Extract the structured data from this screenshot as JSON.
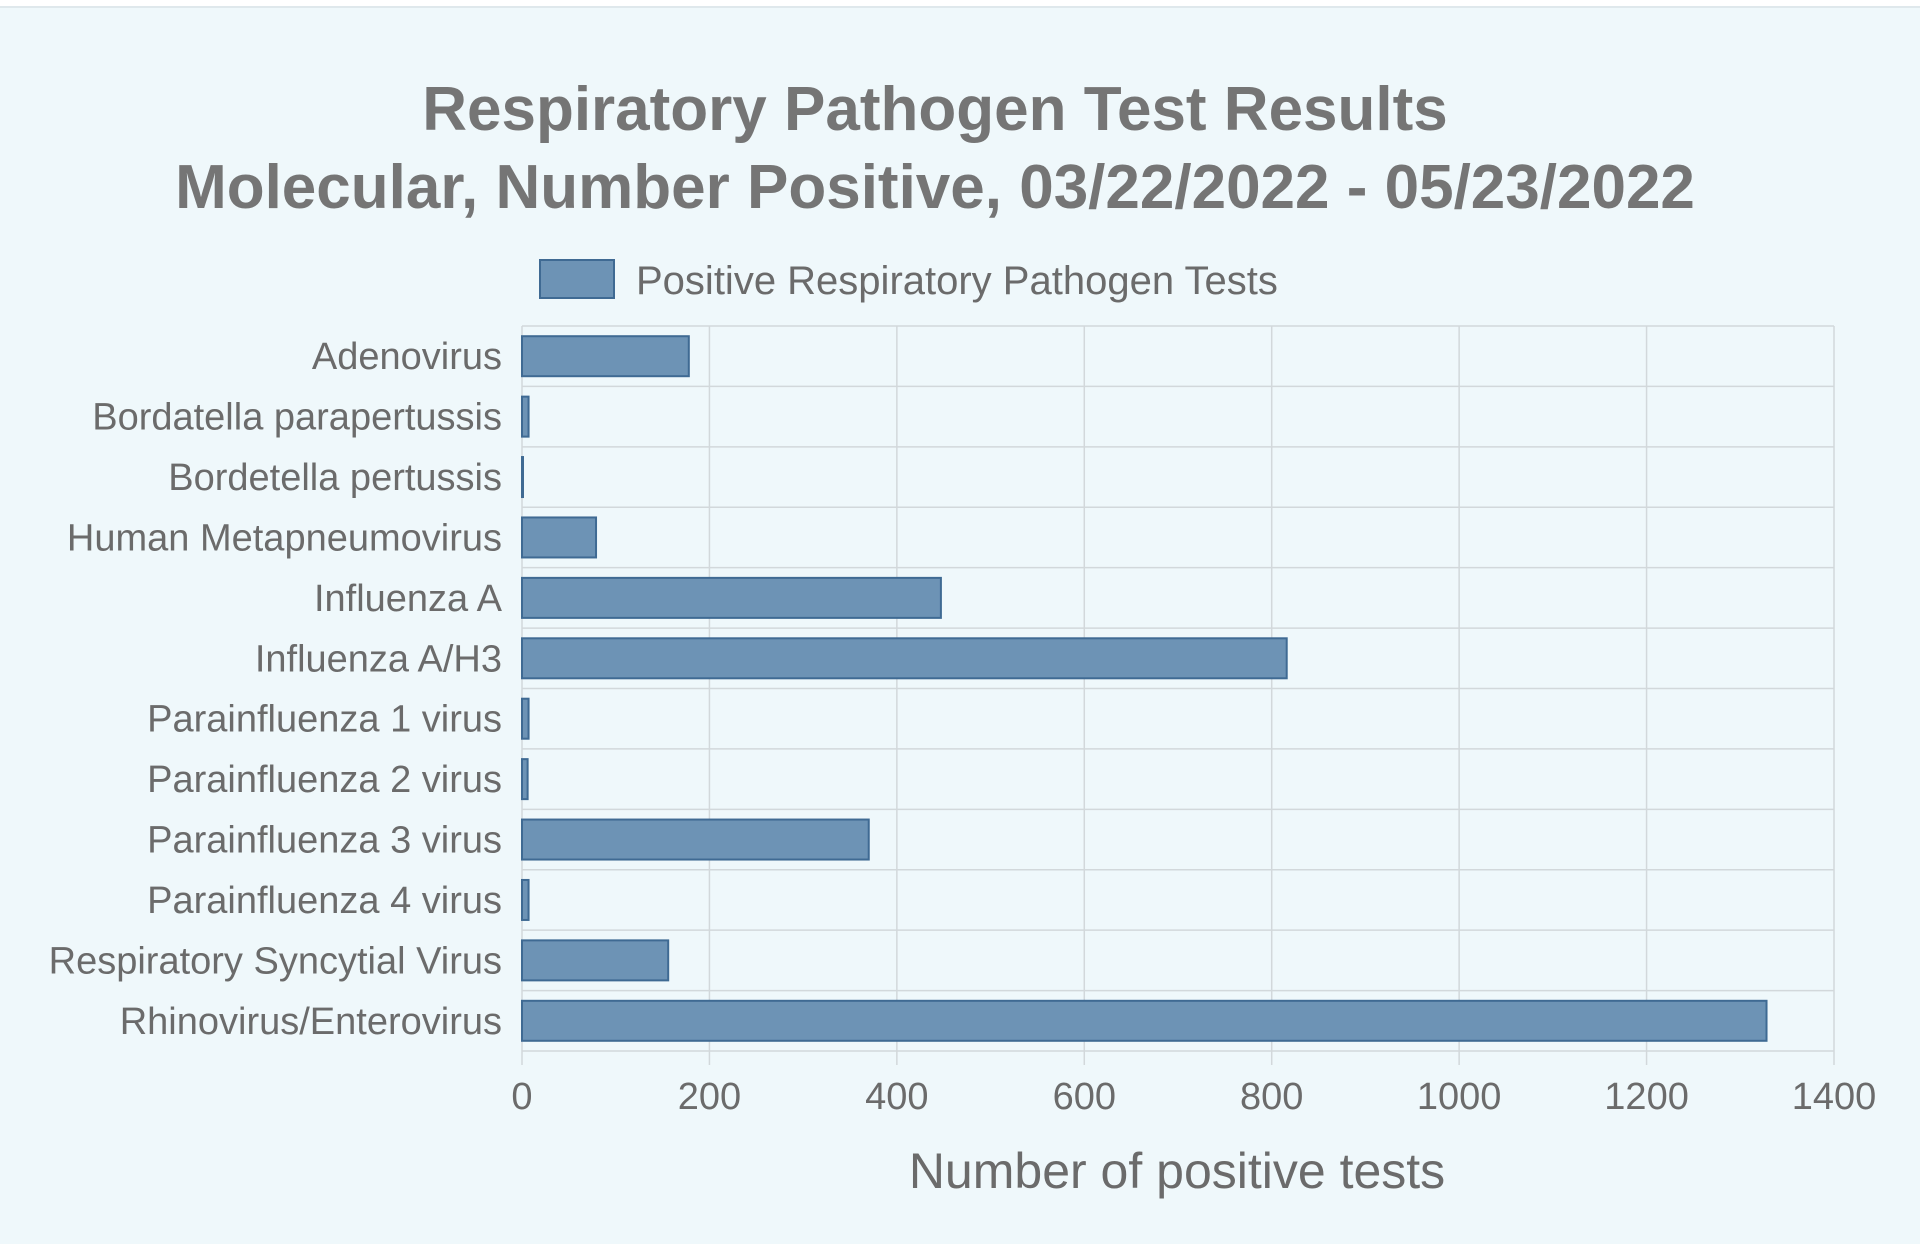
{
  "chart_data": {
    "type": "bar",
    "orientation": "horizontal",
    "title": [
      "Respiratory Pathogen Test Results",
      "Molecular, Number Positive, 03/22/2022 - 05/23/2022"
    ],
    "xlabel": "Number of positive tests",
    "ylabel": "",
    "xlim": [
      0,
      1400
    ],
    "xticks": [
      "0",
      "200",
      "400",
      "600",
      "800",
      "1000",
      "1200",
      "1400"
    ],
    "grid": true,
    "legend_position": "top",
    "categories": [
      "Adenovirus",
      "Bordatella parapertussis",
      "Bordetella pertussis",
      "Human Metapneumovirus",
      "Influenza A",
      "Influenza A/H3",
      "Parainfluenza 1 virus",
      "Parainfluenza 2 virus",
      "Parainfluenza 3 virus",
      "Parainfluenza 4 virus",
      "Respiratory Syncytial Virus",
      "Rhinovirus/Enterovirus"
    ],
    "series": [
      {
        "name": "Positive Respiratory Pathogen Tests",
        "values": [
          178,
          7,
          1,
          79,
          447,
          816,
          7,
          6,
          370,
          7,
          156,
          1328
        ],
        "color": "#6d93b5",
        "border_color": "#3f6a93"
      }
    ]
  }
}
